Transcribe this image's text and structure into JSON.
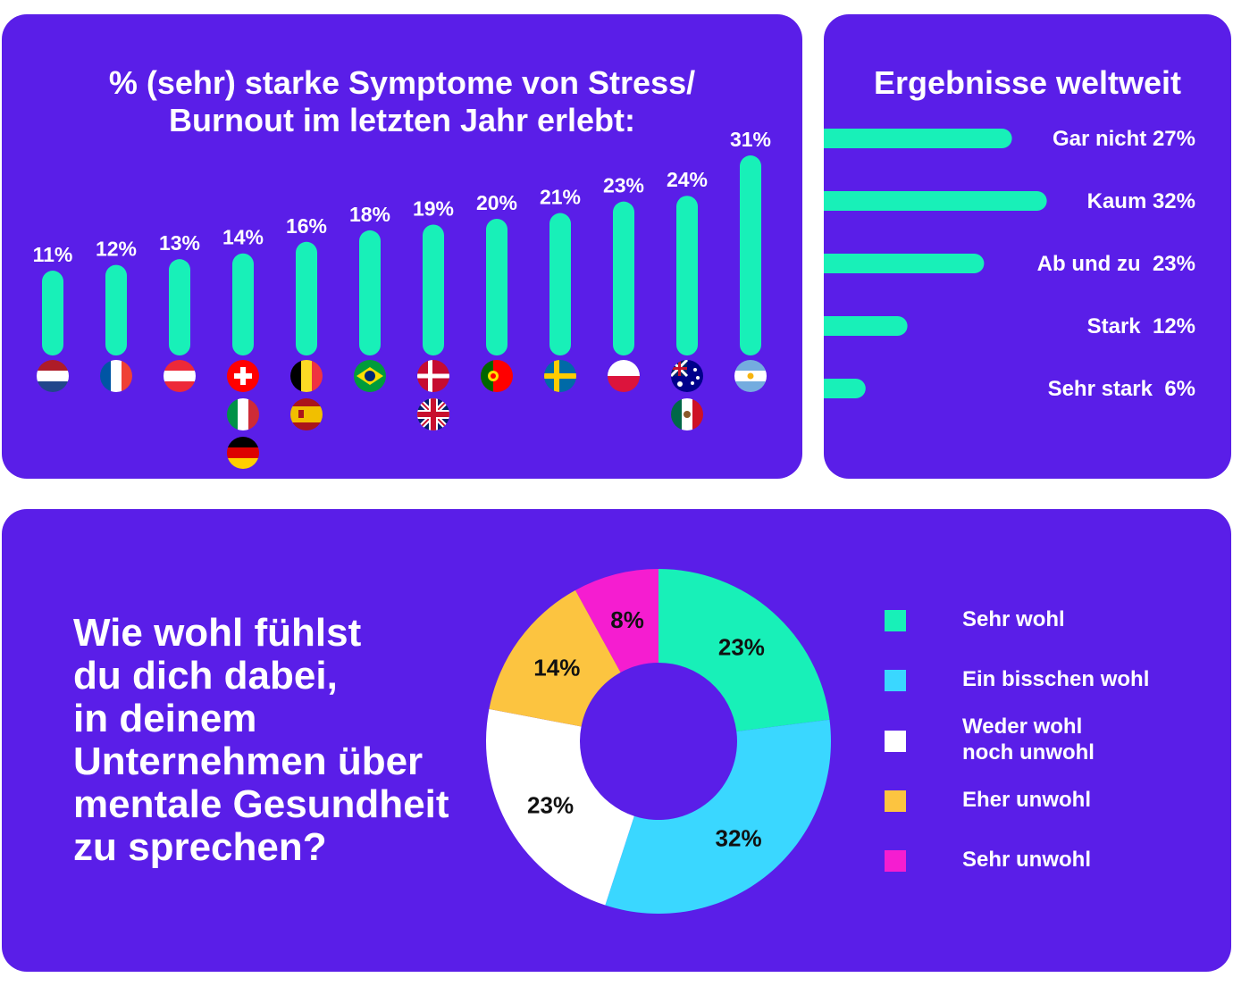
{
  "colors": {
    "background_panel": "#5a1ee8",
    "accent_green": "#18f0b8",
    "cyan": "#3ad7ff",
    "white": "#ffffff",
    "yellow": "#fcc440",
    "magenta": "#f51dd0"
  },
  "country_chart": {
    "title_line1": "% (sehr) starke Symptome von Stress/",
    "title_line2": "Burnout im letzten Jahr erlebt:"
  },
  "world_chart": {
    "title": "Ergebnisse weltweit"
  },
  "donut_panel": {
    "question_lines": [
      "Wie wohl fühlst",
      "du dich dabei,",
      "in deinem",
      "Unternehmen über",
      "mentale Gesundheit",
      "zu sprechen?"
    ]
  },
  "chart_data": [
    {
      "type": "bar",
      "orientation": "vertical",
      "title": "% (sehr) starke Symptome von Stress/ Burnout im letzten Jahr erlebt:",
      "categories": [
        [
          "netherlands-flag"
        ],
        [
          "france-flag"
        ],
        [
          "austria-flag"
        ],
        [
          "switzerland-flag",
          "italy-flag",
          "germany-flag"
        ],
        [
          "belgium-flag",
          "spain-flag"
        ],
        [
          "brazil-flag"
        ],
        [
          "denmark-flag",
          "uk-flag"
        ],
        [
          "portugal-flag"
        ],
        [
          "sweden-flag"
        ],
        [
          "poland-flag"
        ],
        [
          "australia-flag",
          "mexico-flag"
        ],
        [
          "argentina-flag"
        ]
      ],
      "values": [
        11,
        12,
        13,
        14,
        16,
        18,
        19,
        20,
        21,
        23,
        24,
        31
      ],
      "labels": [
        "11%",
        "12%",
        "13%",
        "14%",
        "16%",
        "18%",
        "19%",
        "20%",
        "21%",
        "23%",
        "24%",
        "31%"
      ],
      "color": "#18f0b8",
      "grid": false
    },
    {
      "type": "bar",
      "orientation": "horizontal",
      "title": "Ergebnisse weltweit",
      "categories": [
        "Gar nicht",
        "Kaum",
        "Ab und zu",
        "Stark",
        "Sehr stark"
      ],
      "values": [
        27,
        32,
        23,
        12,
        6
      ],
      "labels": [
        "Gar nicht 27%",
        "Kaum 32%",
        "Ab und zu  23%",
        "Stark  12%",
        "Sehr stark  6%"
      ],
      "color": "#18f0b8",
      "grid": false
    },
    {
      "type": "pie",
      "donut": true,
      "categories": [
        "Sehr wohl",
        "Ein bisschen wohl",
        "Weder wohl noch unwohl",
        "Eher unwohl",
        "Sehr unwohl"
      ],
      "legend_labels": [
        [
          "Sehr wohl"
        ],
        [
          "Ein bisschen wohl"
        ],
        [
          "Weder wohl",
          "noch unwohl"
        ],
        [
          "Eher unwohl"
        ],
        [
          "Sehr unwohl"
        ]
      ],
      "values": [
        23,
        32,
        23,
        14,
        8
      ],
      "labels": [
        "23%",
        "32%",
        "23%",
        "14%",
        "8%"
      ],
      "colors": [
        "#18f0b8",
        "#3ad7ff",
        "#ffffff",
        "#fcc440",
        "#f51dd0"
      ],
      "legend": "right"
    }
  ]
}
